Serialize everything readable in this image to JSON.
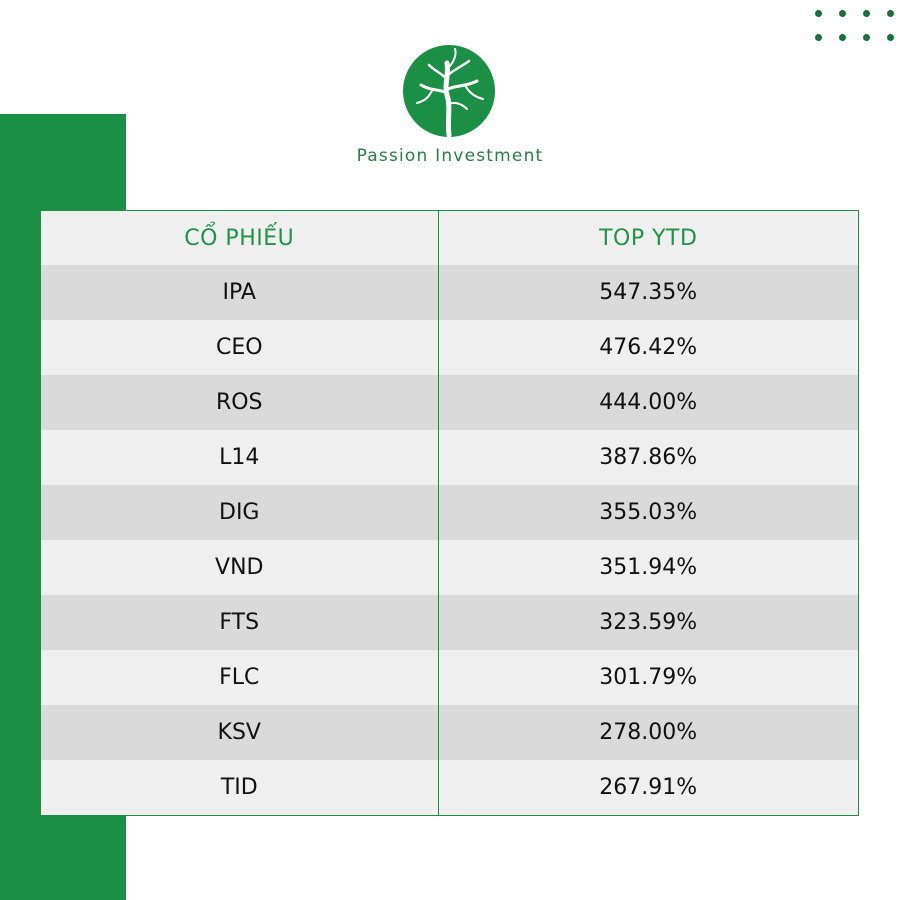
{
  "brand": {
    "name": "Passion Investment",
    "logo_icon": "tree-logo-icon",
    "accent_color": "#1b8f44"
  },
  "decor": {
    "dots_icon": "dot-grid-icon"
  },
  "chart_data": {
    "type": "table",
    "columns": [
      "CỔ PHIẾU",
      "TOP YTD"
    ],
    "rows": [
      {
        "ticker": "IPA",
        "ytd": "547.35%"
      },
      {
        "ticker": "CEO",
        "ytd": "476.42%"
      },
      {
        "ticker": "ROS",
        "ytd": "444.00%"
      },
      {
        "ticker": "L14",
        "ytd": "387.86%"
      },
      {
        "ticker": "DIG",
        "ytd": "355.03%"
      },
      {
        "ticker": "VND",
        "ytd": "351.94%"
      },
      {
        "ticker": "FTS",
        "ytd": "323.59%"
      },
      {
        "ticker": "FLC",
        "ytd": "301.79%"
      },
      {
        "ticker": "KSV",
        "ytd": "278.00%"
      },
      {
        "ticker": "TID",
        "ytd": "267.91%"
      }
    ]
  }
}
